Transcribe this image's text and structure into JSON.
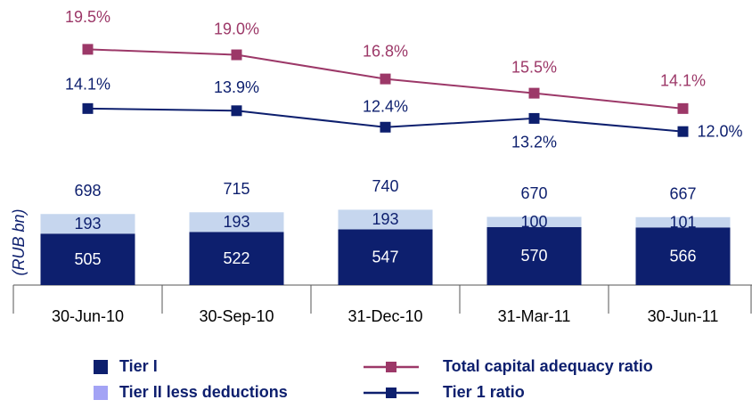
{
  "chart_data": {
    "type": "bar+line",
    "y_axis_label": "(RUB bn)",
    "categories": [
      "30-Jun-10",
      "30-Sep-10",
      "31-Dec-10",
      "31-Mar-11",
      "30-Jun-11"
    ],
    "ylim": [
      0,
      2800
    ],
    "y2lim": [
      -2,
      24
    ],
    "totals": [
      698,
      715,
      740,
      670,
      667
    ],
    "series": [
      {
        "name": "Tier I",
        "type": "bar",
        "color": "#0d1f6e",
        "values": [
          505,
          522,
          547,
          570,
          566
        ]
      },
      {
        "name": "Tier II less deductions",
        "type": "bar",
        "color": "#c6d6ee",
        "legend_color": "#a3a3f5",
        "values": [
          193,
          193,
          193,
          100,
          101
        ]
      },
      {
        "name": "Total capital adequacy ratio",
        "type": "line",
        "axis": "y2",
        "color": "#9c3868",
        "values": [
          19.5,
          19.0,
          16.8,
          15.5,
          14.1
        ],
        "value_labels": [
          "19.5%",
          "19.0%",
          "16.8%",
          "15.5%",
          "14.1%"
        ]
      },
      {
        "name": "Tier 1 ratio",
        "type": "line",
        "axis": "y2",
        "color": "#0d1f6e",
        "values": [
          14.1,
          13.9,
          12.4,
          13.2,
          12.0
        ],
        "value_labels": [
          "14.1%",
          "13.9%",
          "12.4%",
          "13.2%",
          "12.0%"
        ]
      }
    ]
  }
}
